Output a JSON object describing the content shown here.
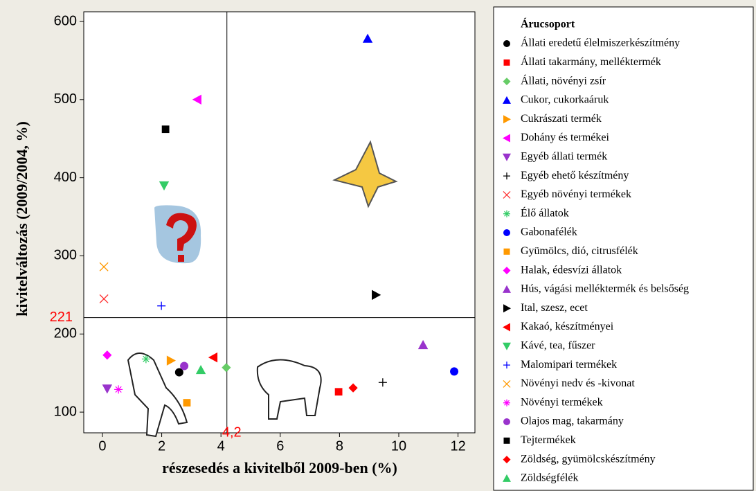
{
  "chart_data": {
    "type": "scatter",
    "xlabel": "részesedés a kivitelből 2009-ben (%)",
    "ylabel": "kivitelváltozás (2009/2004, %)",
    "legend_title": "Árucsoport",
    "xlim": [
      -0.63,
      12.57
    ],
    "ylim": [
      73.5,
      612.4
    ],
    "xticks": [
      0,
      2,
      4,
      6,
      8,
      10,
      12
    ],
    "yticks": [
      100,
      200,
      300,
      400,
      500,
      600
    ],
    "reference_lines": {
      "y": {
        "value": 221,
        "label": "221"
      },
      "x": {
        "value": 4.2,
        "label": "4,2"
      }
    },
    "series": [
      {
        "name": "Állati eredetű élelmiszerkészítmény",
        "color": "#000000",
        "marker": "circle",
        "x": [
          2.59
        ],
        "values": [
          151
        ]
      },
      {
        "name": "Állati takarmány, melléktermék",
        "color": "#ff0000",
        "marker": "square",
        "x": [
          7.97
        ],
        "values": [
          126
        ]
      },
      {
        "name": "Állati, növényi zsír",
        "color": "#66cc66",
        "marker": "diamond",
        "x": [
          4.18
        ],
        "values": [
          157
        ]
      },
      {
        "name": "Cukor, cukorkaáruk",
        "color": "#0000ff",
        "marker": "triangle-up",
        "x": [
          8.95
        ],
        "values": [
          578
        ]
      },
      {
        "name": "Cukrászati termék",
        "color": "#ff9900",
        "marker": "triangle-right",
        "x": [
          2.31
        ],
        "values": [
          166
        ]
      },
      {
        "name": "Dohány és termékei",
        "color": "#ff00ff",
        "marker": "triangle-left",
        "x": [
          3.2
        ],
        "values": [
          500
        ]
      },
      {
        "name": "Egyéb állati termék",
        "color": "#9933cc",
        "marker": "triangle-down",
        "x": [
          0.16
        ],
        "values": [
          130
        ]
      },
      {
        "name": "Egyéb ehető készítmény",
        "color": "#000000",
        "marker": "plus",
        "x": [
          9.46
        ],
        "values": [
          138
        ]
      },
      {
        "name": "Egyéb növényi termékek",
        "color": "#ff3333",
        "marker": "cross",
        "x": [
          0.05
        ],
        "values": [
          245
        ]
      },
      {
        "name": "Élő állatok",
        "color": "#33cc66",
        "marker": "asterisk",
        "x": [
          1.47
        ],
        "values": [
          168
        ]
      },
      {
        "name": "Gabonafélék",
        "color": "#0000ff",
        "marker": "circle",
        "x": [
          11.87
        ],
        "values": [
          152
        ]
      },
      {
        "name": "Gyümölcs, dió, citrusfélék",
        "color": "#ff9900",
        "marker": "square",
        "x": [
          2.85
        ],
        "values": [
          112
        ]
      },
      {
        "name": "Halak, édesvízi állatok",
        "color": "#ff00ff",
        "marker": "diamond",
        "x": [
          0.16
        ],
        "values": [
          173
        ]
      },
      {
        "name": "Hús, vágási melléktermék és belsőség",
        "color": "#9933cc",
        "marker": "triangle-up",
        "x": [
          10.82
        ],
        "values": [
          186
        ]
      },
      {
        "name": "Ital, szesz, ecet",
        "color": "#000000",
        "marker": "triangle-right",
        "x": [
          9.23
        ],
        "values": [
          250
        ]
      },
      {
        "name": "Kakaó, készítményei",
        "color": "#ff0000",
        "marker": "triangle-left",
        "x": [
          3.74
        ],
        "values": [
          170
        ]
      },
      {
        "name": "Kávé, tea, fűszer",
        "color": "#33cc66",
        "marker": "triangle-down",
        "x": [
          2.08
        ],
        "values": [
          390
        ]
      },
      {
        "name": "Malomipari termékek",
        "color": "#0000ff",
        "marker": "plus",
        "x": [
          1.99
        ],
        "values": [
          236
        ]
      },
      {
        "name": "Növényi nedv és -kivonat",
        "color": "#ff9900",
        "marker": "cross",
        "x": [
          0.05
        ],
        "values": [
          286
        ]
      },
      {
        "name": "Növényi termékek",
        "color": "#ff00ff",
        "marker": "asterisk",
        "x": [
          0.54
        ],
        "values": [
          129
        ]
      },
      {
        "name": "Olajos mag, takarmány",
        "color": "#9933cc",
        "marker": "circle",
        "x": [
          2.76
        ],
        "values": [
          159
        ]
      },
      {
        "name": "Tejtermékek",
        "color": "#000000",
        "marker": "square",
        "x": [
          2.13
        ],
        "values": [
          462
        ]
      },
      {
        "name": "Zöldség, gyümölcskészítmény",
        "color": "#ff0000",
        "marker": "diamond",
        "x": [
          8.46
        ],
        "values": [
          131
        ]
      },
      {
        "name": "Zöldségfélék",
        "color": "#33cc66",
        "marker": "triangle-up",
        "x": [
          3.32
        ],
        "values": [
          154
        ]
      }
    ]
  }
}
